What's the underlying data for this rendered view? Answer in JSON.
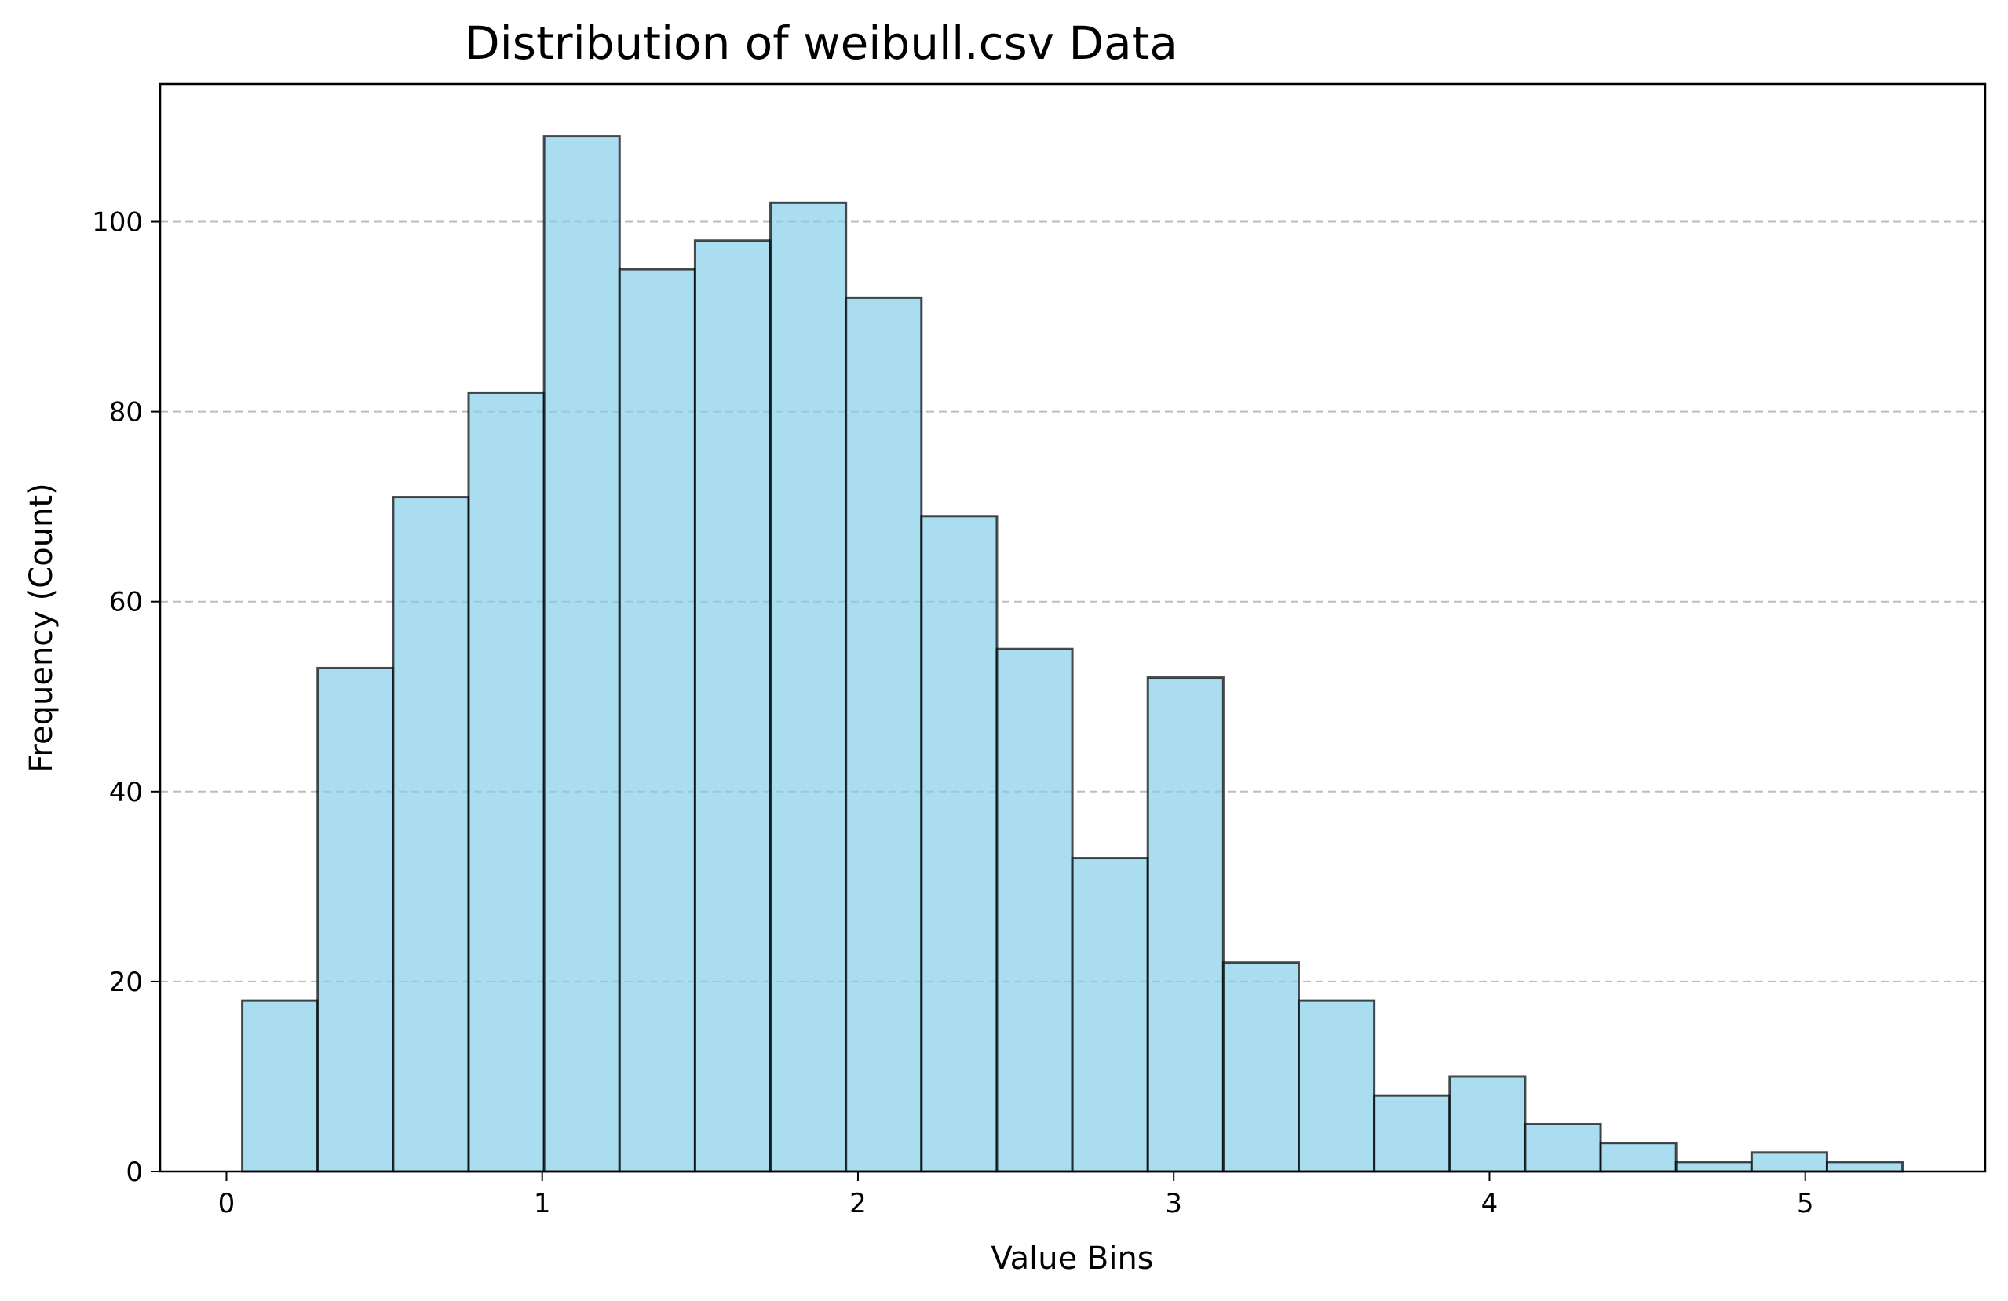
{
  "chart_data": {
    "type": "bar",
    "title": "Distribution of weibull.csv Data",
    "xlabel": "Value Bins",
    "ylabel": "Frequency (Count)",
    "bin_edges": [
      0.05,
      0.289,
      0.528,
      0.767,
      1.006,
      1.245,
      1.484,
      1.723,
      1.962,
      2.201,
      2.44,
      2.679,
      2.918,
      3.157,
      3.396,
      3.635,
      3.874,
      4.113,
      4.352,
      4.591,
      4.83,
      5.069,
      5.308
    ],
    "values": [
      18,
      53,
      71,
      82,
      109,
      95,
      98,
      102,
      92,
      69,
      55,
      33,
      52,
      22,
      18,
      8,
      10,
      5,
      3,
      1,
      2,
      1
    ],
    "xlim": [
      -0.21,
      5.57
    ],
    "ylim": [
      0,
      114.5
    ],
    "xticks": [
      0,
      1,
      2,
      3,
      4,
      5
    ],
    "yticks": [
      0,
      20,
      40,
      60,
      80,
      100
    ],
    "grid": "y-dashed",
    "bar_color": "#87CEEB",
    "bar_opacity": 0.7,
    "edge_color": "#000000"
  }
}
